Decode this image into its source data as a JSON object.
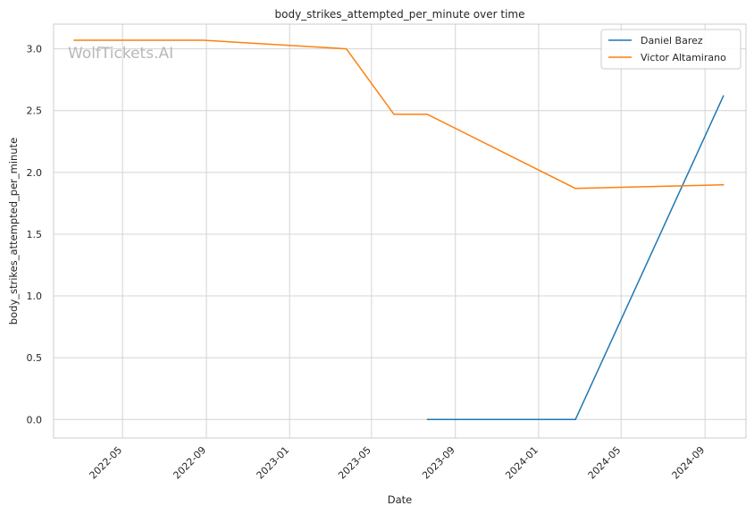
{
  "chart_data": {
    "type": "line",
    "title": "body_strikes_attempted_per_minute over time",
    "xlabel": "Date",
    "ylabel": "body_strikes_attempted_per_minute",
    "watermark": "WolfTickets.AI",
    "xlim": [
      "2022-01-20",
      "2024-10-31"
    ],
    "ylim": [
      -0.15,
      3.2
    ],
    "x_ticks": [
      "2022-05-01",
      "2022-09-01",
      "2023-01-01",
      "2023-05-01",
      "2023-09-01",
      "2024-01-01",
      "2024-05-01",
      "2024-09-01"
    ],
    "x_tick_labels": [
      "2022-05",
      "2022-09",
      "2023-01",
      "2023-05",
      "2023-09",
      "2024-01",
      "2024-05",
      "2024-09"
    ],
    "y_ticks": [
      0.0,
      0.5,
      1.0,
      1.5,
      2.0,
      2.5,
      3.0
    ],
    "y_tick_labels": [
      "0.0",
      "0.5",
      "1.0",
      "1.5",
      "2.0",
      "2.5",
      "3.0"
    ],
    "grid": true,
    "legend_position": "top-right",
    "series": [
      {
        "name": "Daniel Barez",
        "color": "#1f77b4",
        "points": [
          {
            "x": "2023-07-22",
            "y": 0.0
          },
          {
            "x": "2024-02-24",
            "y": 0.0
          },
          {
            "x": "2024-09-28",
            "y": 2.62
          }
        ]
      },
      {
        "name": "Victor Altamirano",
        "color": "#ff7f0e",
        "points": [
          {
            "x": "2022-02-19",
            "y": 3.07
          },
          {
            "x": "2022-08-27",
            "y": 3.07
          },
          {
            "x": "2023-03-25",
            "y": 3.0
          },
          {
            "x": "2023-06-03",
            "y": 2.47
          },
          {
            "x": "2023-07-22",
            "y": 2.47
          },
          {
            "x": "2024-02-24",
            "y": 1.87
          },
          {
            "x": "2024-09-28",
            "y": 1.9
          }
        ]
      }
    ]
  }
}
